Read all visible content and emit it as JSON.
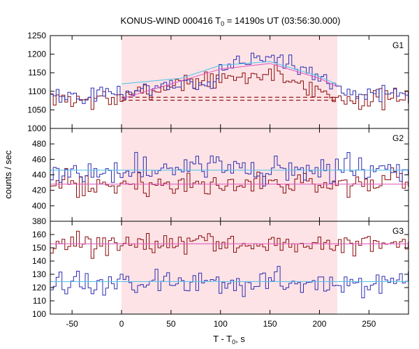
{
  "chart_data": {
    "type": "line",
    "title": {
      "prefix": "KONUS-WIND 000416 T",
      "subscript": "0",
      "suffix": " = 14190s UT (03:56:30.000)"
    },
    "xlabel": {
      "prefix": "T - T",
      "subscript": "0",
      "suffix": ", s"
    },
    "ylabel": "counts / sec",
    "xlim": [
      -72,
      290
    ],
    "xticks": [
      -50,
      0,
      50,
      100,
      150,
      200,
      250
    ],
    "x_tick_labels": [
      "-50",
      "0",
      "50",
      "100",
      "150",
      "200",
      "250"
    ],
    "shaded_interval": {
      "start": 0,
      "end": 218,
      "color": "#fde3e6"
    },
    "colors": {
      "red_series": "#8b0a0a",
      "blue_series": "#2c2cb0",
      "pink_fit": "#e15ec4",
      "cyan_fit": "#5cc4ea",
      "dashed_bg": "#8b0a0a"
    },
    "panels": [
      {
        "label": "G1",
        "ylim": [
          1000,
          1250
        ],
        "yticks": [
          1000,
          1050,
          1100,
          1150,
          1200,
          1250
        ],
        "y_tick_labels": [
          "1000",
          "1050",
          "1100",
          "1150",
          "1200",
          "1250"
        ],
        "red_profile": [
          [
            -72,
            1078
          ],
          [
            -10,
            1078
          ],
          [
            0,
            1082
          ],
          [
            20,
            1092
          ],
          [
            40,
            1110
          ],
          [
            60,
            1125
          ],
          [
            80,
            1130
          ],
          [
            100,
            1128
          ],
          [
            115,
            1135
          ],
          [
            130,
            1140
          ],
          [
            150,
            1150
          ],
          [
            170,
            1135
          ],
          [
            190,
            1110
          ],
          [
            210,
            1090
          ],
          [
            220,
            1080
          ],
          [
            290,
            1078
          ]
        ],
        "blue_profile": [
          [
            -72,
            1090
          ],
          [
            0,
            1092
          ],
          [
            20,
            1105
          ],
          [
            40,
            1115
          ],
          [
            60,
            1118
          ],
          [
            80,
            1120
          ],
          [
            95,
            1125
          ],
          [
            100,
            1160
          ],
          [
            115,
            1180
          ],
          [
            135,
            1185
          ],
          [
            150,
            1195
          ],
          [
            165,
            1180
          ],
          [
            180,
            1160
          ],
          [
            200,
            1140
          ],
          [
            215,
            1115
          ],
          [
            225,
            1100
          ],
          [
            290,
            1090
          ]
        ],
        "red_noise": 13,
        "blue_noise": 11,
        "fits": [
          {
            "color": "#e15ec4",
            "points": [
              [
                0,
                1080
              ],
              [
                50,
                1120
              ],
              [
                100,
                1160
              ],
              [
                150,
                1175
              ],
              [
                200,
                1135
              ],
              [
                218,
                1112
              ]
            ]
          },
          {
            "color": "#5cc4ea",
            "points": [
              [
                0,
                1120
              ],
              [
                60,
                1135
              ],
              [
                100,
                1170
              ],
              [
                150,
                1180
              ],
              [
                200,
                1140
              ],
              [
                218,
                1118
              ]
            ]
          }
        ],
        "dashed": [
          [
            0,
            1076
          ],
          [
            218,
            1076
          ],
          [
            0,
            1084
          ],
          [
            218,
            1084
          ]
        ]
      },
      {
        "label": "G2",
        "ylim": [
          380,
          500
        ],
        "yticks": [
          380,
          400,
          420,
          440,
          460,
          480
        ],
        "y_tick_labels": [
          "380",
          "400",
          "420",
          "440",
          "460",
          "480"
        ],
        "red_profile": [
          [
            -72,
            427
          ],
          [
            290,
            427
          ]
        ],
        "blue_profile": [
          [
            -72,
            446
          ],
          [
            290,
            446
          ]
        ],
        "red_noise": 8,
        "blue_noise": 9,
        "fits": [
          {
            "color": "#e15ec4",
            "points": [
              [
                -72,
                428
              ],
              [
                290,
                428
              ]
            ]
          },
          {
            "color": "#5cc4ea",
            "points": [
              [
                -72,
                446
              ],
              [
                290,
                446
              ]
            ]
          }
        ],
        "dashed": []
      },
      {
        "label": "G3",
        "ylim": [
          100,
          170
        ],
        "yticks": [
          100,
          110,
          120,
          130,
          140,
          150,
          160
        ],
        "y_tick_labels": [
          "100",
          "110",
          "120",
          "130",
          "140",
          "150",
          "160"
        ],
        "red_profile": [
          [
            -72,
            153
          ],
          [
            290,
            153
          ]
        ],
        "blue_profile": [
          [
            -72,
            124
          ],
          [
            290,
            124
          ]
        ],
        "red_noise": 4.5,
        "blue_noise": 4.5,
        "fits": [
          {
            "color": "#e15ec4",
            "points": [
              [
                -72,
                153
              ],
              [
                290,
                153
              ]
            ]
          },
          {
            "color": "#5cc4ea",
            "points": [
              [
                -72,
                124.5
              ],
              [
                290,
                124.5
              ]
            ]
          }
        ],
        "dashed": []
      }
    ]
  }
}
